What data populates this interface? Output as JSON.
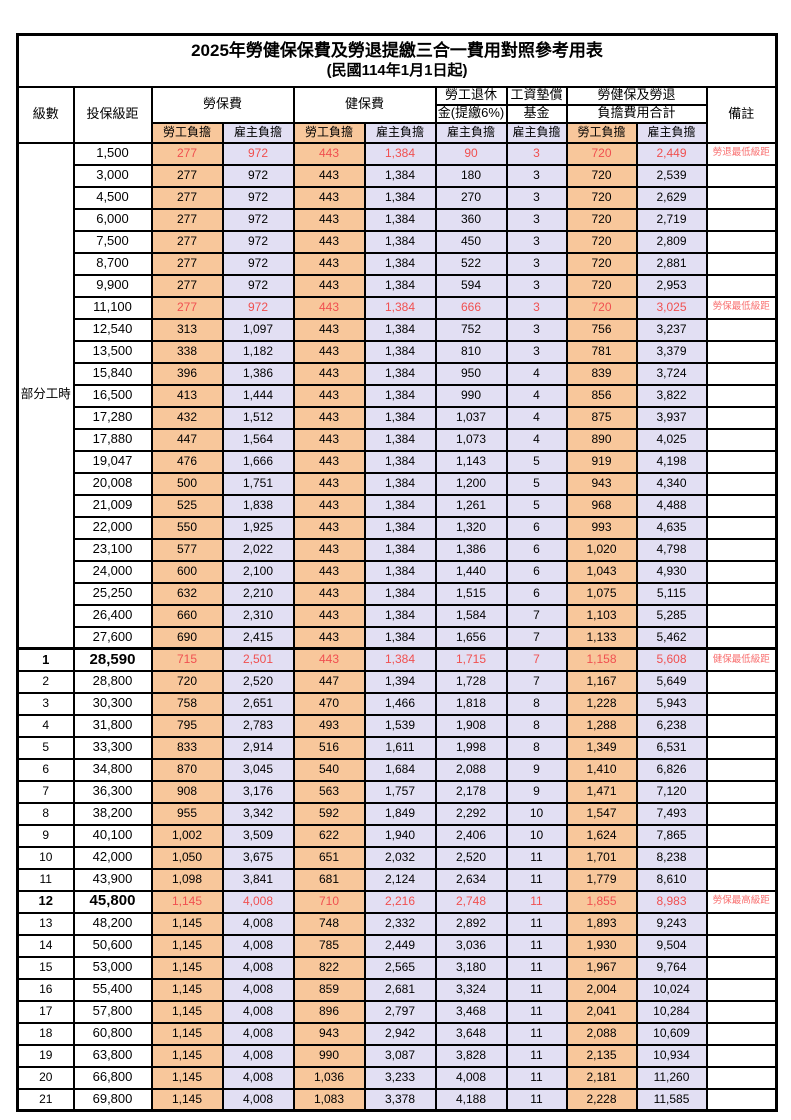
{
  "title": "2025年勞健保保費及勞退提繳三合一費用對照參考用表",
  "subtitle": "(民國114年1月1日起)",
  "colors": {
    "employee_bg": "#F8C79B",
    "employer_bg": "#E2DFF3",
    "highlight_text": "#F05050",
    "remark_text": "#F86E6E"
  },
  "header": {
    "level": "級數",
    "bracket": "投保級距",
    "labor_insurance": "勞保費",
    "health_insurance": "健保費",
    "pension_line1": "勞工退休",
    "pension_line2": "金(提繳6%)",
    "wage_fund_line1": "工資墊償",
    "wage_fund_line2": "基金",
    "total_line1": "勞健保及勞退",
    "total_line2": "負擔費用合計",
    "remark": "備註",
    "employee": "勞工負擔",
    "employer": "雇主負擔"
  },
  "part_time_label": "部分工時",
  "part_time_rowspan": 23,
  "rows": [
    {
      "level": "",
      "bracket": "1,500",
      "li_emp": "277",
      "li_er": "972",
      "hi_emp": "443",
      "hi_er": "1,384",
      "pension": "90",
      "fund": "3",
      "tot_emp": "720",
      "tot_er": "2,449",
      "remark": "勞退最低級距",
      "hl": true
    },
    {
      "level": "",
      "bracket": "3,000",
      "li_emp": "277",
      "li_er": "972",
      "hi_emp": "443",
      "hi_er": "1,384",
      "pension": "180",
      "fund": "3",
      "tot_emp": "720",
      "tot_er": "2,539",
      "remark": ""
    },
    {
      "level": "",
      "bracket": "4,500",
      "li_emp": "277",
      "li_er": "972",
      "hi_emp": "443",
      "hi_er": "1,384",
      "pension": "270",
      "fund": "3",
      "tot_emp": "720",
      "tot_er": "2,629",
      "remark": ""
    },
    {
      "level": "",
      "bracket": "6,000",
      "li_emp": "277",
      "li_er": "972",
      "hi_emp": "443",
      "hi_er": "1,384",
      "pension": "360",
      "fund": "3",
      "tot_emp": "720",
      "tot_er": "2,719",
      "remark": ""
    },
    {
      "level": "",
      "bracket": "7,500",
      "li_emp": "277",
      "li_er": "972",
      "hi_emp": "443",
      "hi_er": "1,384",
      "pension": "450",
      "fund": "3",
      "tot_emp": "720",
      "tot_er": "2,809",
      "remark": ""
    },
    {
      "level": "",
      "bracket": "8,700",
      "li_emp": "277",
      "li_er": "972",
      "hi_emp": "443",
      "hi_er": "1,384",
      "pension": "522",
      "fund": "3",
      "tot_emp": "720",
      "tot_er": "2,881",
      "remark": ""
    },
    {
      "level": "",
      "bracket": "9,900",
      "li_emp": "277",
      "li_er": "972",
      "hi_emp": "443",
      "hi_er": "1,384",
      "pension": "594",
      "fund": "3",
      "tot_emp": "720",
      "tot_er": "2,953",
      "remark": ""
    },
    {
      "level": "",
      "bracket": "11,100",
      "li_emp": "277",
      "li_er": "972",
      "hi_emp": "443",
      "hi_er": "1,384",
      "pension": "666",
      "fund": "3",
      "tot_emp": "720",
      "tot_er": "3,025",
      "remark": "勞保最低級距",
      "hl": true
    },
    {
      "level": "",
      "bracket": "12,540",
      "li_emp": "313",
      "li_er": "1,097",
      "hi_emp": "443",
      "hi_er": "1,384",
      "pension": "752",
      "fund": "3",
      "tot_emp": "756",
      "tot_er": "3,237",
      "remark": ""
    },
    {
      "level": "",
      "bracket": "13,500",
      "li_emp": "338",
      "li_er": "1,182",
      "hi_emp": "443",
      "hi_er": "1,384",
      "pension": "810",
      "fund": "3",
      "tot_emp": "781",
      "tot_er": "3,379",
      "remark": ""
    },
    {
      "level": "",
      "bracket": "15,840",
      "li_emp": "396",
      "li_er": "1,386",
      "hi_emp": "443",
      "hi_er": "1,384",
      "pension": "950",
      "fund": "4",
      "tot_emp": "839",
      "tot_er": "3,724",
      "remark": ""
    },
    {
      "level": "",
      "bracket": "16,500",
      "li_emp": "413",
      "li_er": "1,444",
      "hi_emp": "443",
      "hi_er": "1,384",
      "pension": "990",
      "fund": "4",
      "tot_emp": "856",
      "tot_er": "3,822",
      "remark": ""
    },
    {
      "level": "",
      "bracket": "17,280",
      "li_emp": "432",
      "li_er": "1,512",
      "hi_emp": "443",
      "hi_er": "1,384",
      "pension": "1,037",
      "fund": "4",
      "tot_emp": "875",
      "tot_er": "3,937",
      "remark": ""
    },
    {
      "level": "",
      "bracket": "17,880",
      "li_emp": "447",
      "li_er": "1,564",
      "hi_emp": "443",
      "hi_er": "1,384",
      "pension": "1,073",
      "fund": "4",
      "tot_emp": "890",
      "tot_er": "4,025",
      "remark": ""
    },
    {
      "level": "",
      "bracket": "19,047",
      "li_emp": "476",
      "li_er": "1,666",
      "hi_emp": "443",
      "hi_er": "1,384",
      "pension": "1,143",
      "fund": "5",
      "tot_emp": "919",
      "tot_er": "4,198",
      "remark": ""
    },
    {
      "level": "",
      "bracket": "20,008",
      "li_emp": "500",
      "li_er": "1,751",
      "hi_emp": "443",
      "hi_er": "1,384",
      "pension": "1,200",
      "fund": "5",
      "tot_emp": "943",
      "tot_er": "4,340",
      "remark": ""
    },
    {
      "level": "",
      "bracket": "21,009",
      "li_emp": "525",
      "li_er": "1,838",
      "hi_emp": "443",
      "hi_er": "1,384",
      "pension": "1,261",
      "fund": "5",
      "tot_emp": "968",
      "tot_er": "4,488",
      "remark": ""
    },
    {
      "level": "",
      "bracket": "22,000",
      "li_emp": "550",
      "li_er": "1,925",
      "hi_emp": "443",
      "hi_er": "1,384",
      "pension": "1,320",
      "fund": "6",
      "tot_emp": "993",
      "tot_er": "4,635",
      "remark": ""
    },
    {
      "level": "",
      "bracket": "23,100",
      "li_emp": "577",
      "li_er": "2,022",
      "hi_emp": "443",
      "hi_er": "1,384",
      "pension": "1,386",
      "fund": "6",
      "tot_emp": "1,020",
      "tot_er": "4,798",
      "remark": ""
    },
    {
      "level": "",
      "bracket": "24,000",
      "li_emp": "600",
      "li_er": "2,100",
      "hi_emp": "443",
      "hi_er": "1,384",
      "pension": "1,440",
      "fund": "6",
      "tot_emp": "1,043",
      "tot_er": "4,930",
      "remark": ""
    },
    {
      "level": "",
      "bracket": "25,250",
      "li_emp": "632",
      "li_er": "2,210",
      "hi_emp": "443",
      "hi_er": "1,384",
      "pension": "1,515",
      "fund": "6",
      "tot_emp": "1,075",
      "tot_er": "5,115",
      "remark": ""
    },
    {
      "level": "",
      "bracket": "26,400",
      "li_emp": "660",
      "li_er": "2,310",
      "hi_emp": "443",
      "hi_er": "1,384",
      "pension": "1,584",
      "fund": "7",
      "tot_emp": "1,103",
      "tot_er": "5,285",
      "remark": ""
    },
    {
      "level": "",
      "bracket": "27,600",
      "li_emp": "690",
      "li_er": "2,415",
      "hi_emp": "443",
      "hi_er": "1,384",
      "pension": "1,656",
      "fund": "7",
      "tot_emp": "1,133",
      "tot_er": "5,462",
      "remark": ""
    },
    {
      "level": "1",
      "bracket": "28,590",
      "li_emp": "715",
      "li_er": "2,501",
      "hi_emp": "443",
      "hi_er": "1,384",
      "pension": "1,715",
      "fund": "7",
      "tot_emp": "1,158",
      "tot_er": "5,608",
      "remark": "健保最低級距",
      "hl": true,
      "bold": true,
      "sep": true
    },
    {
      "level": "2",
      "bracket": "28,800",
      "li_emp": "720",
      "li_er": "2,520",
      "hi_emp": "447",
      "hi_er": "1,394",
      "pension": "1,728",
      "fund": "7",
      "tot_emp": "1,167",
      "tot_er": "5,649",
      "remark": ""
    },
    {
      "level": "3",
      "bracket": "30,300",
      "li_emp": "758",
      "li_er": "2,651",
      "hi_emp": "470",
      "hi_er": "1,466",
      "pension": "1,818",
      "fund": "8",
      "tot_emp": "1,228",
      "tot_er": "5,943",
      "remark": ""
    },
    {
      "level": "4",
      "bracket": "31,800",
      "li_emp": "795",
      "li_er": "2,783",
      "hi_emp": "493",
      "hi_er": "1,539",
      "pension": "1,908",
      "fund": "8",
      "tot_emp": "1,288",
      "tot_er": "6,238",
      "remark": ""
    },
    {
      "level": "5",
      "bracket": "33,300",
      "li_emp": "833",
      "li_er": "2,914",
      "hi_emp": "516",
      "hi_er": "1,611",
      "pension": "1,998",
      "fund": "8",
      "tot_emp": "1,349",
      "tot_er": "6,531",
      "remark": ""
    },
    {
      "level": "6",
      "bracket": "34,800",
      "li_emp": "870",
      "li_er": "3,045",
      "hi_emp": "540",
      "hi_er": "1,684",
      "pension": "2,088",
      "fund": "9",
      "tot_emp": "1,410",
      "tot_er": "6,826",
      "remark": ""
    },
    {
      "level": "7",
      "bracket": "36,300",
      "li_emp": "908",
      "li_er": "3,176",
      "hi_emp": "563",
      "hi_er": "1,757",
      "pension": "2,178",
      "fund": "9",
      "tot_emp": "1,471",
      "tot_er": "7,120",
      "remark": ""
    },
    {
      "level": "8",
      "bracket": "38,200",
      "li_emp": "955",
      "li_er": "3,342",
      "hi_emp": "592",
      "hi_er": "1,849",
      "pension": "2,292",
      "fund": "10",
      "tot_emp": "1,547",
      "tot_er": "7,493",
      "remark": ""
    },
    {
      "level": "9",
      "bracket": "40,100",
      "li_emp": "1,002",
      "li_er": "3,509",
      "hi_emp": "622",
      "hi_er": "1,940",
      "pension": "2,406",
      "fund": "10",
      "tot_emp": "1,624",
      "tot_er": "7,865",
      "remark": ""
    },
    {
      "level": "10",
      "bracket": "42,000",
      "li_emp": "1,050",
      "li_er": "3,675",
      "hi_emp": "651",
      "hi_er": "2,032",
      "pension": "2,520",
      "fund": "11",
      "tot_emp": "1,701",
      "tot_er": "8,238",
      "remark": ""
    },
    {
      "level": "11",
      "bracket": "43,900",
      "li_emp": "1,098",
      "li_er": "3,841",
      "hi_emp": "681",
      "hi_er": "2,124",
      "pension": "2,634",
      "fund": "11",
      "tot_emp": "1,779",
      "tot_er": "8,610",
      "remark": ""
    },
    {
      "level": "12",
      "bracket": "45,800",
      "li_emp": "1,145",
      "li_er": "4,008",
      "hi_emp": "710",
      "hi_er": "2,216",
      "pension": "2,748",
      "fund": "11",
      "tot_emp": "1,855",
      "tot_er": "8,983",
      "remark": "勞保最高級距",
      "hl": true,
      "bold": true
    },
    {
      "level": "13",
      "bracket": "48,200",
      "li_emp": "1,145",
      "li_er": "4,008",
      "hi_emp": "748",
      "hi_er": "2,332",
      "pension": "2,892",
      "fund": "11",
      "tot_emp": "1,893",
      "tot_er": "9,243",
      "remark": ""
    },
    {
      "level": "14",
      "bracket": "50,600",
      "li_emp": "1,145",
      "li_er": "4,008",
      "hi_emp": "785",
      "hi_er": "2,449",
      "pension": "3,036",
      "fund": "11",
      "tot_emp": "1,930",
      "tot_er": "9,504",
      "remark": ""
    },
    {
      "level": "15",
      "bracket": "53,000",
      "li_emp": "1,145",
      "li_er": "4,008",
      "hi_emp": "822",
      "hi_er": "2,565",
      "pension": "3,180",
      "fund": "11",
      "tot_emp": "1,967",
      "tot_er": "9,764",
      "remark": ""
    },
    {
      "level": "16",
      "bracket": "55,400",
      "li_emp": "1,145",
      "li_er": "4,008",
      "hi_emp": "859",
      "hi_er": "2,681",
      "pension": "3,324",
      "fund": "11",
      "tot_emp": "2,004",
      "tot_er": "10,024",
      "remark": ""
    },
    {
      "level": "17",
      "bracket": "57,800",
      "li_emp": "1,145",
      "li_er": "4,008",
      "hi_emp": "896",
      "hi_er": "2,797",
      "pension": "3,468",
      "fund": "11",
      "tot_emp": "2,041",
      "tot_er": "10,284",
      "remark": ""
    },
    {
      "level": "18",
      "bracket": "60,800",
      "li_emp": "1,145",
      "li_er": "4,008",
      "hi_emp": "943",
      "hi_er": "2,942",
      "pension": "3,648",
      "fund": "11",
      "tot_emp": "2,088",
      "tot_er": "10,609",
      "remark": ""
    },
    {
      "level": "19",
      "bracket": "63,800",
      "li_emp": "1,145",
      "li_er": "4,008",
      "hi_emp": "990",
      "hi_er": "3,087",
      "pension": "3,828",
      "fund": "11",
      "tot_emp": "2,135",
      "tot_er": "10,934",
      "remark": ""
    },
    {
      "level": "20",
      "bracket": "66,800",
      "li_emp": "1,145",
      "li_er": "4,008",
      "hi_emp": "1,036",
      "hi_er": "3,233",
      "pension": "4,008",
      "fund": "11",
      "tot_emp": "2,181",
      "tot_er": "11,260",
      "remark": ""
    },
    {
      "level": "21",
      "bracket": "69,800",
      "li_emp": "1,145",
      "li_er": "4,008",
      "hi_emp": "1,083",
      "hi_er": "3,378",
      "pension": "4,188",
      "fund": "11",
      "tot_emp": "2,228",
      "tot_er": "11,585",
      "remark": ""
    }
  ]
}
